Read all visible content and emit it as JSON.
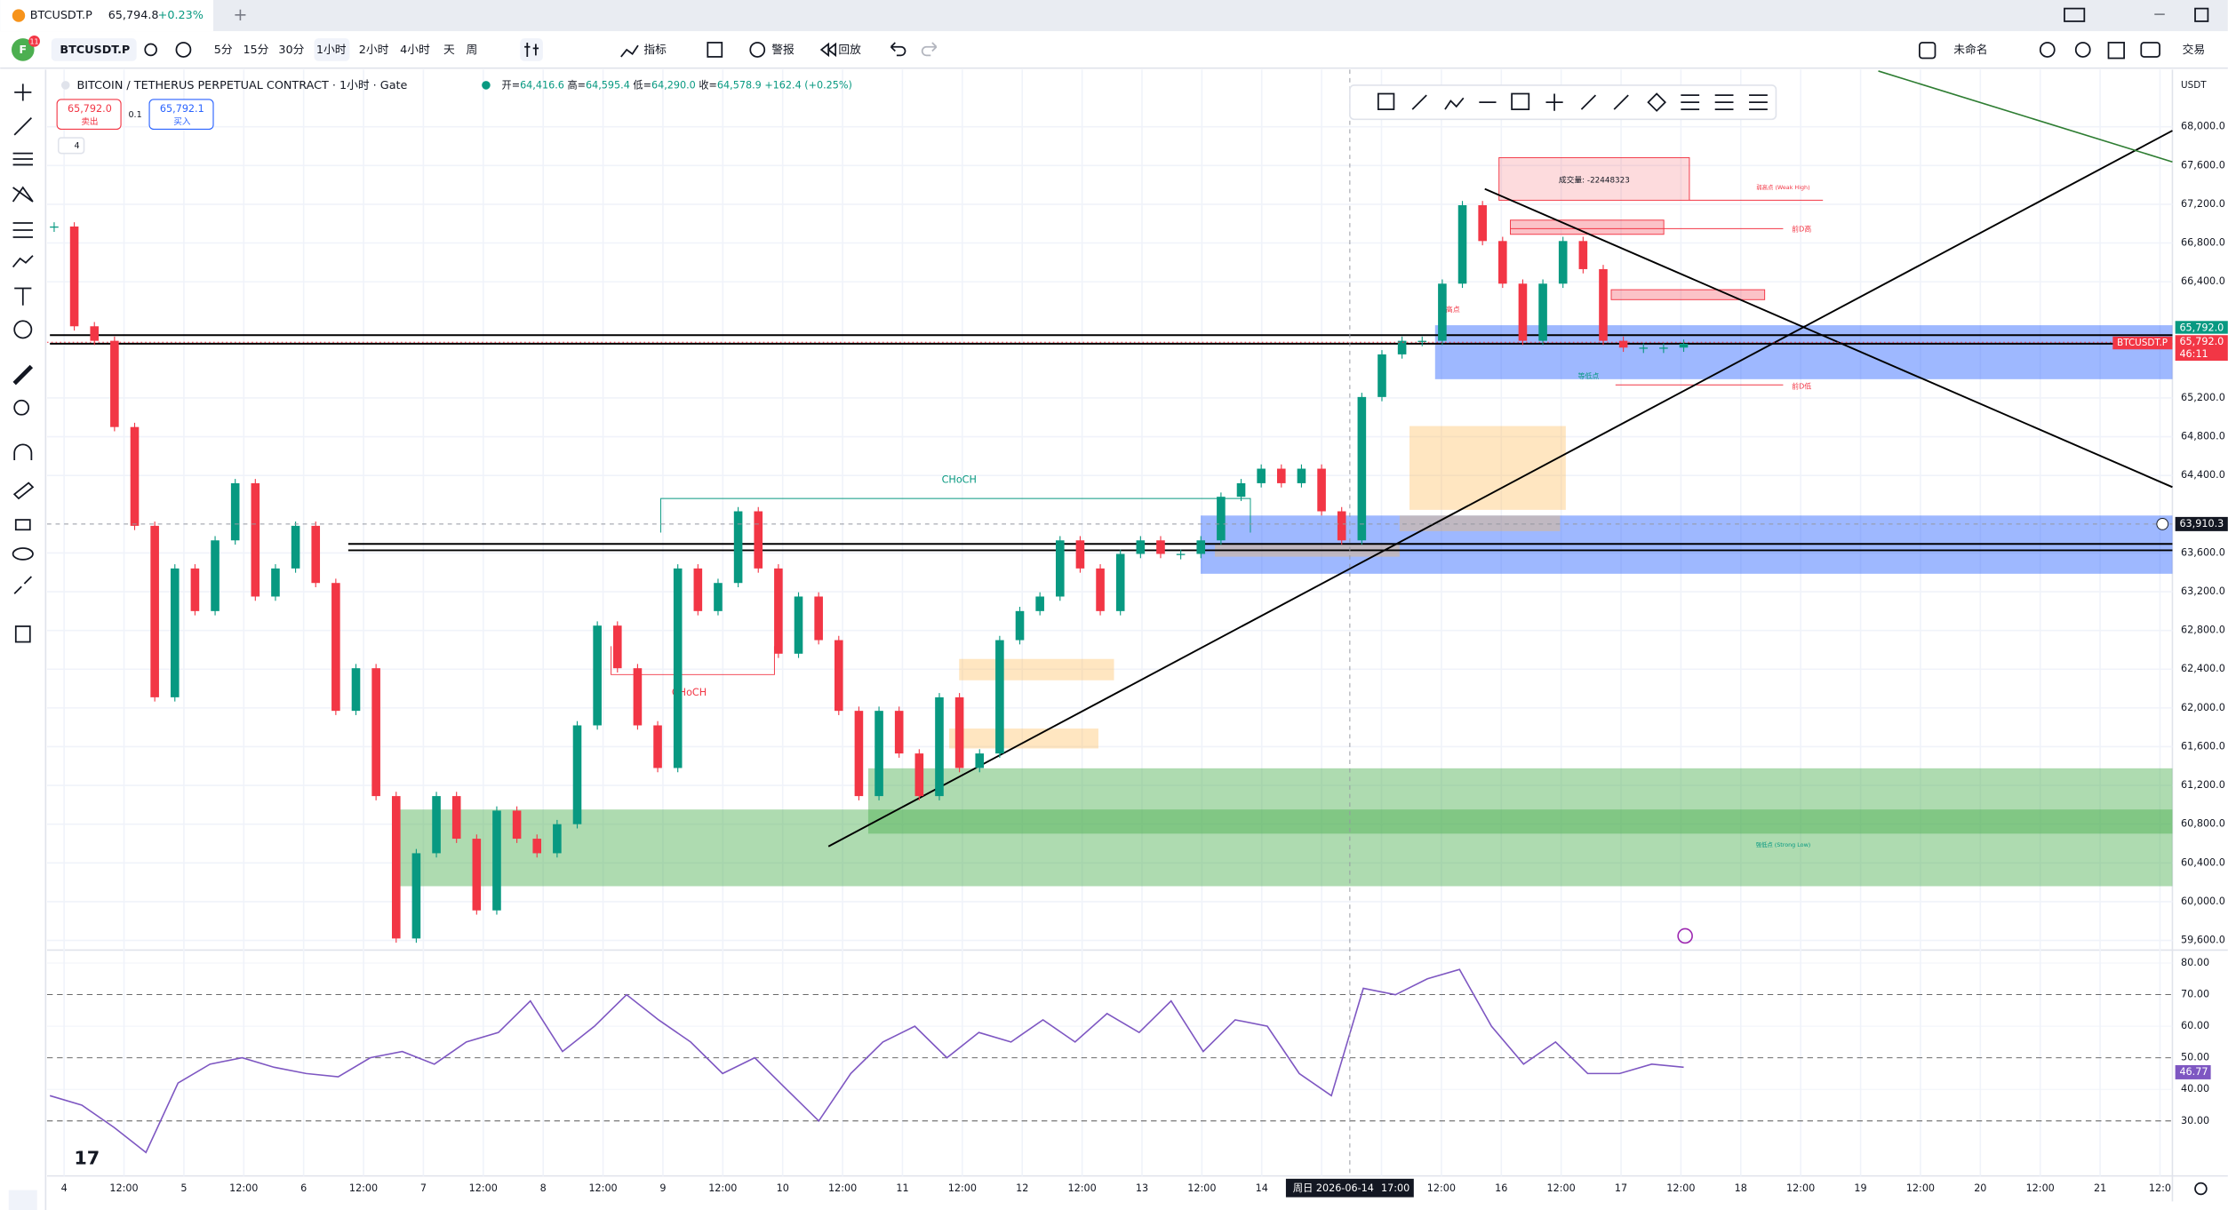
{
  "tab": {
    "symbol": "BTCUSDT.P",
    "price": "65,794.8",
    "change": "+0.23%"
  },
  "toolbar": {
    "avatar": "F",
    "badge": "11",
    "symbol": "BTCUSDT.P",
    "intervals": [
      "5分",
      "15分",
      "30分",
      "1小时",
      "2小时",
      "4小时",
      "天",
      "周"
    ],
    "indicators": "指标",
    "alert": "警报",
    "replay": "回放",
    "layout_name": "未命名",
    "trade": "交易"
  },
  "legend": {
    "title": "BITCOIN / TETHERUS PERPETUAL CONTRACT · 1小时 · Gate",
    "ohlc": [
      {
        "label": "开=",
        "value": "64,416.6"
      },
      {
        "label": "高=",
        "value": "64,595.4"
      },
      {
        "label": "低=",
        "value": "64,290.0"
      },
      {
        "label": "收=",
        "value": "64,578.9"
      }
    ],
    "change": "+162.4 (+0.25%)",
    "sell_price": "65,792.0",
    "sell": "卖出",
    "quantity": "0.1",
    "buy_price": "65,792.1",
    "buy": "买入",
    "collapsed_count": "4"
  },
  "annotations": {
    "volume": "成交量: -22448323",
    "weak_high": "弱高点 (Weak High)",
    "prev_day_high": "前D高",
    "prev_day_low": "前D低",
    "equal_highs": "等高点",
    "equal_lows": "等低点",
    "choch_up": "CHoCH",
    "choch_down": "CHoCH",
    "strong_low": "强低点 (Strong Low)"
  },
  "price_scale": {
    "currency": "USDT",
    "last_price": "65,792.0",
    "last_price_2": "65,792.0",
    "countdown": "46:11",
    "symbol_tag": "BTCUSDT.P",
    "crosshair_price": "63,910.3",
    "rsi_value": "46.77",
    "crosshair_date": "周日 2026-06-14",
    "crosshair_time": "17:00"
  },
  "chart_data": {
    "type": "candlestick",
    "closes": [
      66970,
      65940,
      65790,
      64900,
      63880,
      62110,
      63440,
      63000,
      63730,
      64320,
      63150,
      63440,
      63880,
      63290,
      61970,
      62410,
      61090,
      59620,
      60500,
      61090,
      60650,
      59910,
      60940,
      60650,
      60500,
      60800,
      61820,
      62850,
      62410,
      61820,
      61380,
      63440,
      63000,
      63290,
      64030,
      63440,
      62560,
      63150,
      62700,
      61970,
      61090,
      61970,
      61530,
      61090,
      62110,
      61380,
      61530,
      62700,
      63000,
      63150,
      63730,
      63440,
      63000,
      63590,
      63730,
      63590,
      63590,
      63730,
      64180,
      64320,
      64470,
      64320,
      64470,
      64030,
      63730,
      65210,
      65650,
      65790,
      65790,
      66380,
      67190,
      66820,
      66380,
      65790,
      66380,
      66820,
      66530,
      65790,
      65720,
      65720,
      65720,
      65760
    ],
    "up_color": "#089981",
    "down_color": "#f23645",
    "ylim": [
      59500,
      68590
    ],
    "yticks": [
      {
        "value": 68000,
        "label": "68,000.0"
      },
      {
        "value": 67600,
        "label": "67,600.0"
      },
      {
        "value": 67200,
        "label": "67,200.0"
      },
      {
        "value": 66800,
        "label": "66,800.0"
      },
      {
        "value": 66400,
        "label": "66,400.0"
      },
      {
        "value": 65200,
        "label": "65,200.0"
      },
      {
        "value": 64800,
        "label": "64,800.0"
      },
      {
        "value": 64400,
        "label": "64,400.0"
      },
      {
        "value": 63600,
        "label": "63,600.0"
      },
      {
        "value": 63200,
        "label": "63,200.0"
      },
      {
        "value": 62800,
        "label": "62,800.0"
      },
      {
        "value": 62400,
        "label": "62,400.0"
      },
      {
        "value": 62000,
        "label": "62,000.0"
      },
      {
        "value": 61600,
        "label": "61,600.0"
      },
      {
        "value": 61200,
        "label": "61,200.0"
      },
      {
        "value": 60800,
        "label": "60,800.0"
      },
      {
        "value": 60400,
        "label": "60,400.0"
      },
      {
        "value": 60000,
        "label": "60,000.0"
      },
      {
        "value": 59600,
        "label": "59,600.0"
      }
    ],
    "time_labels": [
      "4",
      "12:00",
      "5",
      "12:00",
      "6",
      "12:00",
      "7",
      "12:00",
      "8",
      "12:00",
      "9",
      "12:00",
      "10",
      "12:00",
      "11",
      "12:00",
      "12",
      "12:00",
      "13",
      "12:00",
      "14",
      null,
      null,
      "12:00",
      "16",
      "12:00",
      "17",
      "12:00",
      "18",
      "12:00",
      "19",
      "12:00",
      "20",
      "12:00",
      "21",
      "12:0"
    ],
    "grid": true,
    "rsi": {
      "color": "#7e57c2",
      "values": [
        38,
        35,
        28,
        20,
        42,
        48,
        50,
        47,
        45,
        44,
        50,
        52,
        48,
        55,
        58,
        68,
        52,
        60,
        70,
        62,
        55,
        45,
        50,
        40,
        30,
        45,
        55,
        60,
        50,
        58,
        55,
        62,
        55,
        64,
        58,
        68,
        52,
        62,
        60,
        45,
        38,
        72,
        70,
        75,
        78,
        60,
        48,
        55,
        45,
        45,
        48,
        47
      ],
      "ylim": [
        12.6,
        84.1
      ],
      "yticks": [
        {
          "value": 80,
          "label": "80.00"
        },
        {
          "value": 70,
          "label": "70.00"
        },
        {
          "value": 60,
          "label": "60.00"
        },
        {
          "value": 50,
          "label": "50.00"
        },
        {
          "value": 40,
          "label": "40.00"
        },
        {
          "value": 30,
          "label": "30.00"
        }
      ]
    }
  }
}
